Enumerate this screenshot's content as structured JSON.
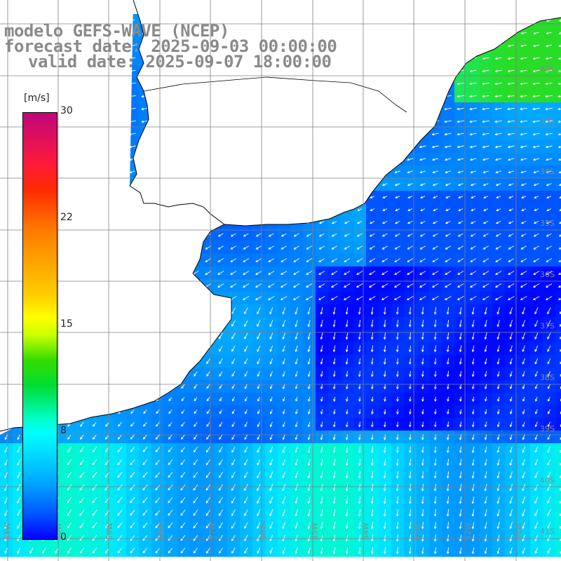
{
  "title": {
    "line1": "modelo GEFS-WAVE (NCEP)",
    "line2": "forecast date: 2025-09-03 00:00:00",
    "line3": "valid date: 2025-09-07 18:00:00"
  },
  "colorbar": {
    "unit": "[m/s]",
    "tick_labels": [
      "30",
      "22",
      "15",
      "8",
      "0"
    ],
    "colors_top_to_bottom": [
      "#c0067a",
      "#ff1a3a",
      "#ff7700",
      "#ffff00",
      "#33dd00",
      "#00ffcc",
      "#0099ff",
      "#0000ff"
    ]
  },
  "map": {
    "variable": "wind speed and direction",
    "land_color": "#ffffff",
    "coastline_color": "#000000",
    "grid_color": "#888888",
    "lon_labels": [
      "61W",
      "60W",
      "59W",
      "58W",
      "57W",
      "56W",
      "55W",
      "54W",
      "53W",
      "52W",
      "51W"
    ],
    "lat_labels": [
      "32S",
      "33S",
      "34S",
      "35S",
      "36S",
      "37S",
      "38S",
      "39S",
      "40S",
      "41S"
    ]
  }
}
